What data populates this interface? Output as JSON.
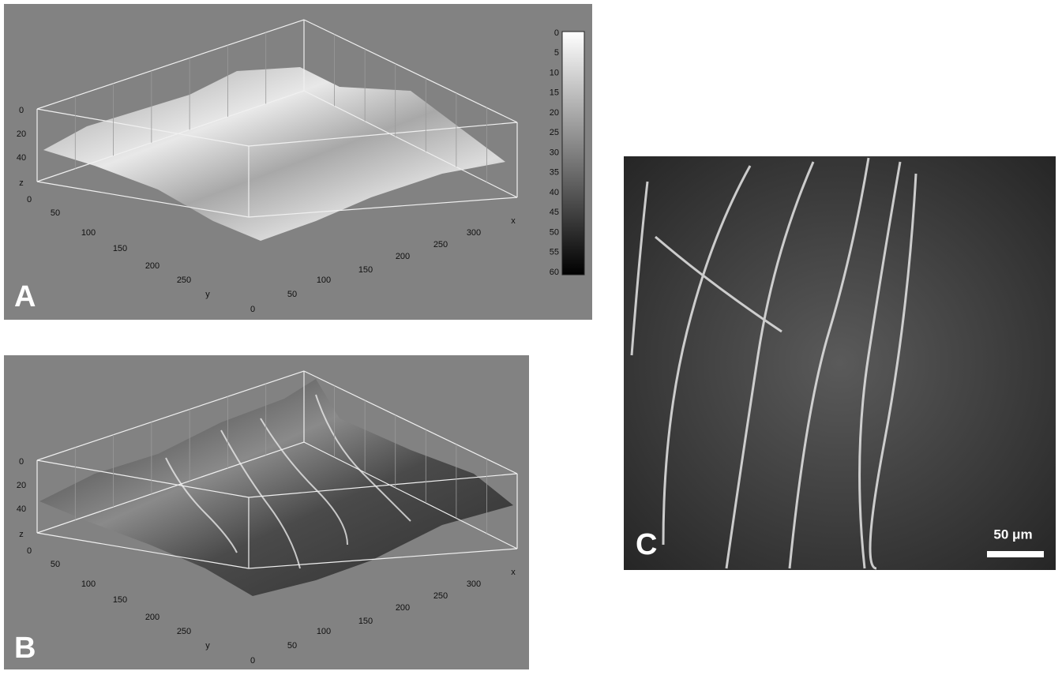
{
  "panels": [
    {
      "label": "A",
      "z_ticks": [
        0,
        20,
        40
      ],
      "z_label": "z",
      "y_ticks": [
        0,
        50,
        100,
        150,
        200,
        250
      ],
      "y_label": "y",
      "x_ticks": [
        0,
        50,
        100,
        150,
        200,
        250,
        300
      ],
      "x_label": "x",
      "colorbar_ticks": [
        0,
        5,
        10,
        15,
        20,
        25,
        30,
        35,
        40,
        45,
        50,
        55,
        60
      ]
    },
    {
      "label": "B",
      "z_ticks": [
        0,
        20,
        40
      ],
      "z_label": "z",
      "y_ticks": [
        0,
        50,
        100,
        150,
        200,
        250
      ],
      "y_label": "y",
      "x_ticks": [
        0,
        50,
        100,
        150,
        200,
        250,
        300
      ],
      "x_label": "x"
    },
    {
      "label": "C",
      "scale_bar": "50 μm"
    }
  ]
}
